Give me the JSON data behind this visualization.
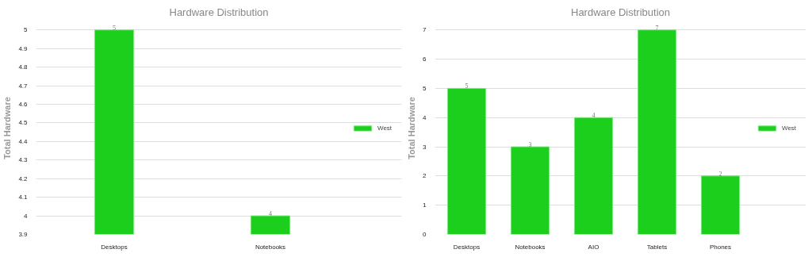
{
  "chart_data": [
    {
      "type": "bar",
      "title": "Hardware Distribution",
      "ylabel": "Total Hardware",
      "categories": [
        "Desktops",
        "Notebooks"
      ],
      "series": [
        {
          "name": "West",
          "color": "#1ccf1c",
          "values": [
            5,
            4
          ]
        }
      ],
      "ylim": [
        3.9,
        5
      ],
      "yticks": [
        3.9,
        4,
        4.1,
        4.2,
        4.3,
        4.4,
        4.5,
        4.6,
        4.7,
        4.8,
        4.9,
        5
      ],
      "grid": "y",
      "legend": "right",
      "data_labels": true
    },
    {
      "type": "bar",
      "title": "Hardware Distribution",
      "ylabel": "Total Hardware",
      "categories": [
        "Desktops",
        "Notebooks",
        "AIO",
        "Tablets",
        "Phones"
      ],
      "series": [
        {
          "name": "West",
          "color": "#1ccf1c",
          "values": [
            5,
            3,
            4,
            7,
            2
          ]
        }
      ],
      "ylim": [
        0,
        7
      ],
      "yticks": [
        0,
        1,
        2,
        3,
        4,
        5,
        6,
        7
      ],
      "grid": "y",
      "legend": "right",
      "data_labels": true
    }
  ]
}
